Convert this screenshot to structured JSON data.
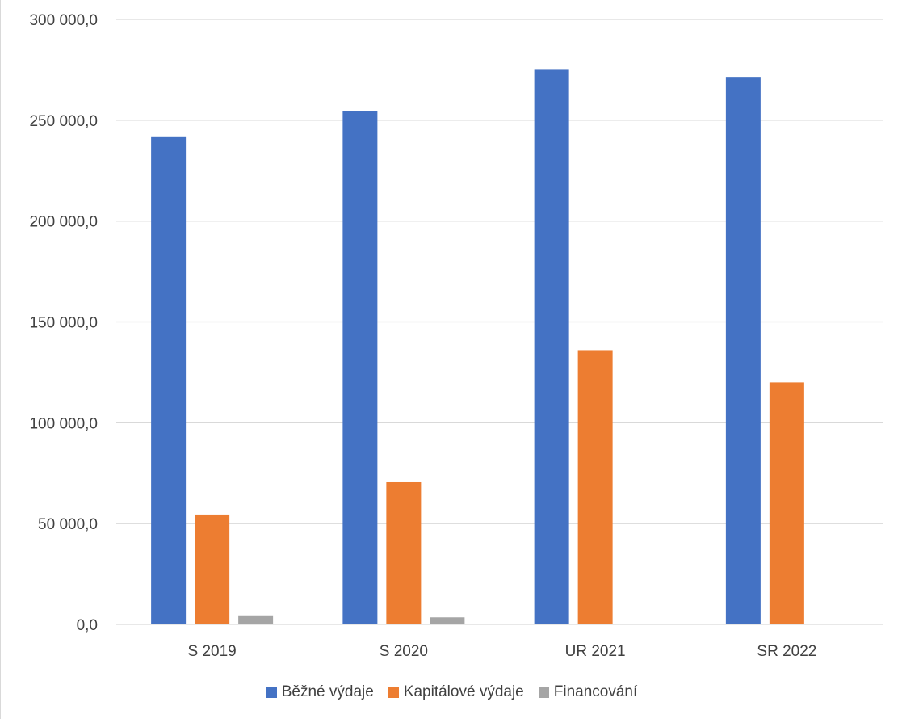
{
  "chart_data": {
    "type": "bar",
    "title": "",
    "xlabel": "",
    "ylabel": "",
    "categories": [
      "S 2019",
      "S 2020",
      "UR 2021",
      "SR 2022"
    ],
    "series": [
      {
        "name": "Běžné výdaje",
        "color": "#4472C4",
        "values": [
          242000,
          254500,
          275000,
          271500
        ]
      },
      {
        "name": "Kapitálové výdaje",
        "color": "#ED7D31",
        "values": [
          54500,
          70500,
          136000,
          120000
        ]
      },
      {
        "name": "Financování",
        "color": "#A5A5A5",
        "values": [
          4500,
          3500,
          0,
          0
        ]
      }
    ],
    "ylim": [
      0,
      300000
    ],
    "yticks": [
      0,
      50000,
      100000,
      150000,
      200000,
      250000,
      300000
    ],
    "ytick_labels": [
      "0,0",
      "50 000,0",
      "100 000,0",
      "150 000,0",
      "200 000,0",
      "250 000,0",
      "300 000,0"
    ],
    "grid": true,
    "legend_position": "bottom"
  }
}
